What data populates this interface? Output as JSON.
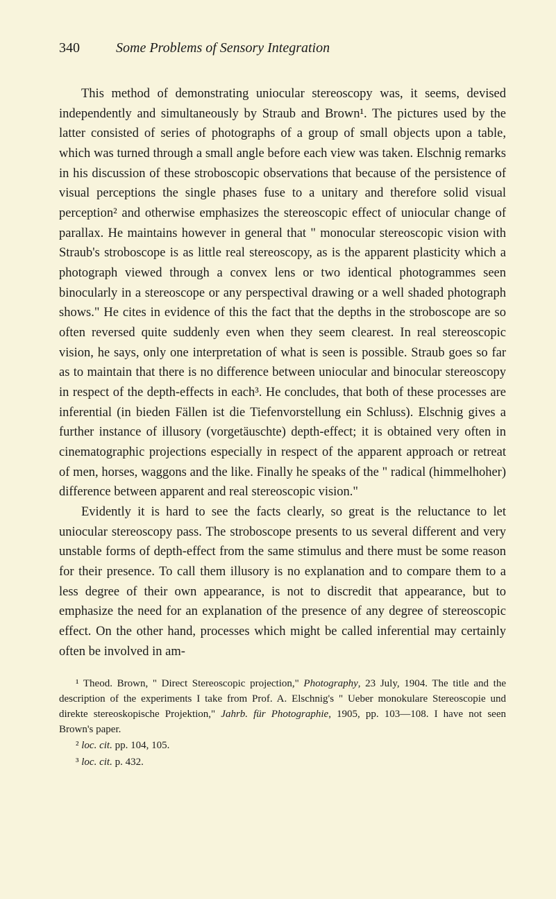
{
  "header": {
    "pageNumber": "340",
    "runningTitle": "Some Problems of Sensory Integration"
  },
  "paragraphs": {
    "p1": "This method of demonstrating uniocular stereoscopy was, it seems, devised independently and simultaneously by Straub and Brown¹. The pictures used by the latter consisted of series of photographs of a group of small objects upon a table, which was turned through a small angle before each view was taken. Elschnig remarks in his discussion of these stroboscopic observations that because of the persistence of visual perceptions the single phases fuse to a unitary and therefore solid visual perception² and otherwise emphasizes the stereoscopic effect of uniocular change of parallax. He maintains however in general that \" monocular stereoscopic vision with Straub's stroboscope is as little real stereoscopy, as is the apparent plasticity which a photograph viewed through a convex lens or two identical photogrammes seen binocularly in a stereoscope or any perspectival drawing or a well shaded photograph shows.\" He cites in evidence of this the fact that the depths in the stroboscope are so often reversed quite suddenly even when they seem clearest. In real stereoscopic vision, he says, only one interpretation of what is seen is possible. Straub goes so far as to maintain that there is no difference between uniocular and binocular stereoscopy in respect of the depth-effects in each³. He concludes, that both of these processes are inferential (in bieden Fällen ist die Tiefenvorstellung ein Schluss). Elschnig gives a further instance of illusory (vorgetäuschte) depth-effect; it is obtained very often in cinematographic projections especially in respect of the apparent approach or retreat of men, horses, waggons and the like. Finally he speaks of the \" radical (himmelhoher) difference between apparent and real stereoscopic vision.\"",
    "p2": "Evidently it is hard to see the facts clearly, so great is the reluctance to let uniocular stereoscopy pass. The stroboscope presents to us several different and very unstable forms of depth-effect from the same stimulus and there must be some reason for their presence. To call them illusory is no explanation and to compare them to a less degree of their own appearance, is not to discredit that appearance, but to emphasize the need for an explanation of the presence of any degree of stereoscopic effect. On the other hand, processes which might be called inferential may certainly often be involved in am-"
  },
  "footnotes": {
    "fn1_a": "¹ Theod. Brown, \" Direct Stereoscopic projection,\" ",
    "fn1_b": "Photography",
    "fn1_c": ", 23 July, 1904. The title and the description of the experiments I take from Prof. A. Elschnig's \" Ueber monokulare Stereoscopie und direkte stereoskopische Projektion,\" ",
    "fn1_d": "Jahrb. für Photographie",
    "fn1_e": ", 1905, pp. 103—108. I have not seen Brown's paper.",
    "fn2_a": "² ",
    "fn2_b": "loc. cit.",
    "fn2_c": " pp. 104, 105.",
    "fn3_a": "³ ",
    "fn3_b": "loc. cit.",
    "fn3_c": " p. 432."
  },
  "colors": {
    "background": "#f8f4dc",
    "text": "#1a1a1a"
  },
  "typography": {
    "body_fontsize": 18.5,
    "header_fontsize": 20,
    "footnote_fontsize": 15,
    "font_family": "Georgia, Times New Roman, serif"
  }
}
